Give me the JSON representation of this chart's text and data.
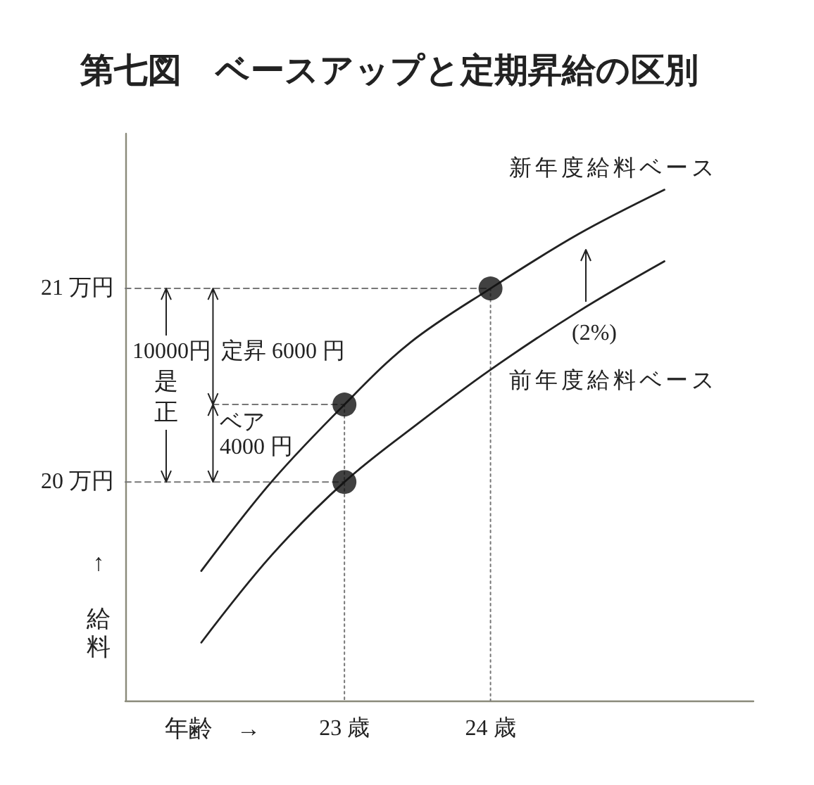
{
  "chart_data": {
    "type": "line",
    "title": "第七図　ベースアップと定期昇給の区別",
    "xlabel": "年齢　→",
    "ylabel": "↑ 給料",
    "xlim": [
      21.5,
      25.8
    ],
    "xticks": [
      {
        "value": 23,
        "label": "23 歳"
      },
      {
        "value": 24,
        "label": "24 歳"
      }
    ],
    "ylim": [
      18.87,
      21.8
    ],
    "yticks": [
      {
        "value": 20,
        "label": "20 万円"
      },
      {
        "value": 21,
        "label": "21 万円"
      }
    ],
    "grid": false,
    "legend": false,
    "marker": "none",
    "line_style": "solid",
    "series": [
      {
        "name": "新年度給料ベース",
        "color": "#222222",
        "x": [
          22.02,
          22.5,
          23,
          23.45,
          24,
          24.6,
          25.19
        ],
        "values": [
          19.54,
          20.0,
          20.4,
          20.72,
          21.0,
          21.28,
          21.51
        ]
      },
      {
        "name": "前年度給料ベース",
        "color": "#222222",
        "x": [
          22.02,
          22.5,
          23,
          23.5,
          24,
          24.6,
          25.19
        ],
        "values": [
          19.17,
          19.62,
          20.0,
          20.3,
          20.58,
          20.88,
          21.14
        ]
      },
      {
        "type": "scatter",
        "color": "#111111",
        "marker": "circle",
        "x": [
          23,
          23,
          24
        ],
        "values": [
          20.4,
          20,
          21
        ]
      },
      {
        "color": "#777777",
        "line_style": "dashed",
        "x": [
          21.5,
          24
        ],
        "values": [
          21,
          21
        ]
      },
      {
        "color": "#777777",
        "line_style": "dotted",
        "x": [
          24,
          24
        ],
        "values": [
          21,
          18.87
        ]
      },
      {
        "color": "#777777",
        "line_style": "dashed",
        "x": [
          21.5,
          23
        ],
        "values": [
          20,
          20
        ]
      },
      {
        "color": "#777777",
        "line_style": "dashed",
        "x": [
          22.1,
          23
        ],
        "values": [
          20.4,
          20.4
        ]
      },
      {
        "color": "#777777",
        "line_style": "dotted",
        "x": [
          23,
          23
        ],
        "values": [
          20.4,
          18.87
        ]
      }
    ],
    "annotations": [
      "10000円",
      "是正",
      "定昇 6000 円",
      {
        "text": "ベア",
        "x": 22.1,
        "y": 20.4
      },
      "4000 円",
      "(2%)"
    ]
  }
}
